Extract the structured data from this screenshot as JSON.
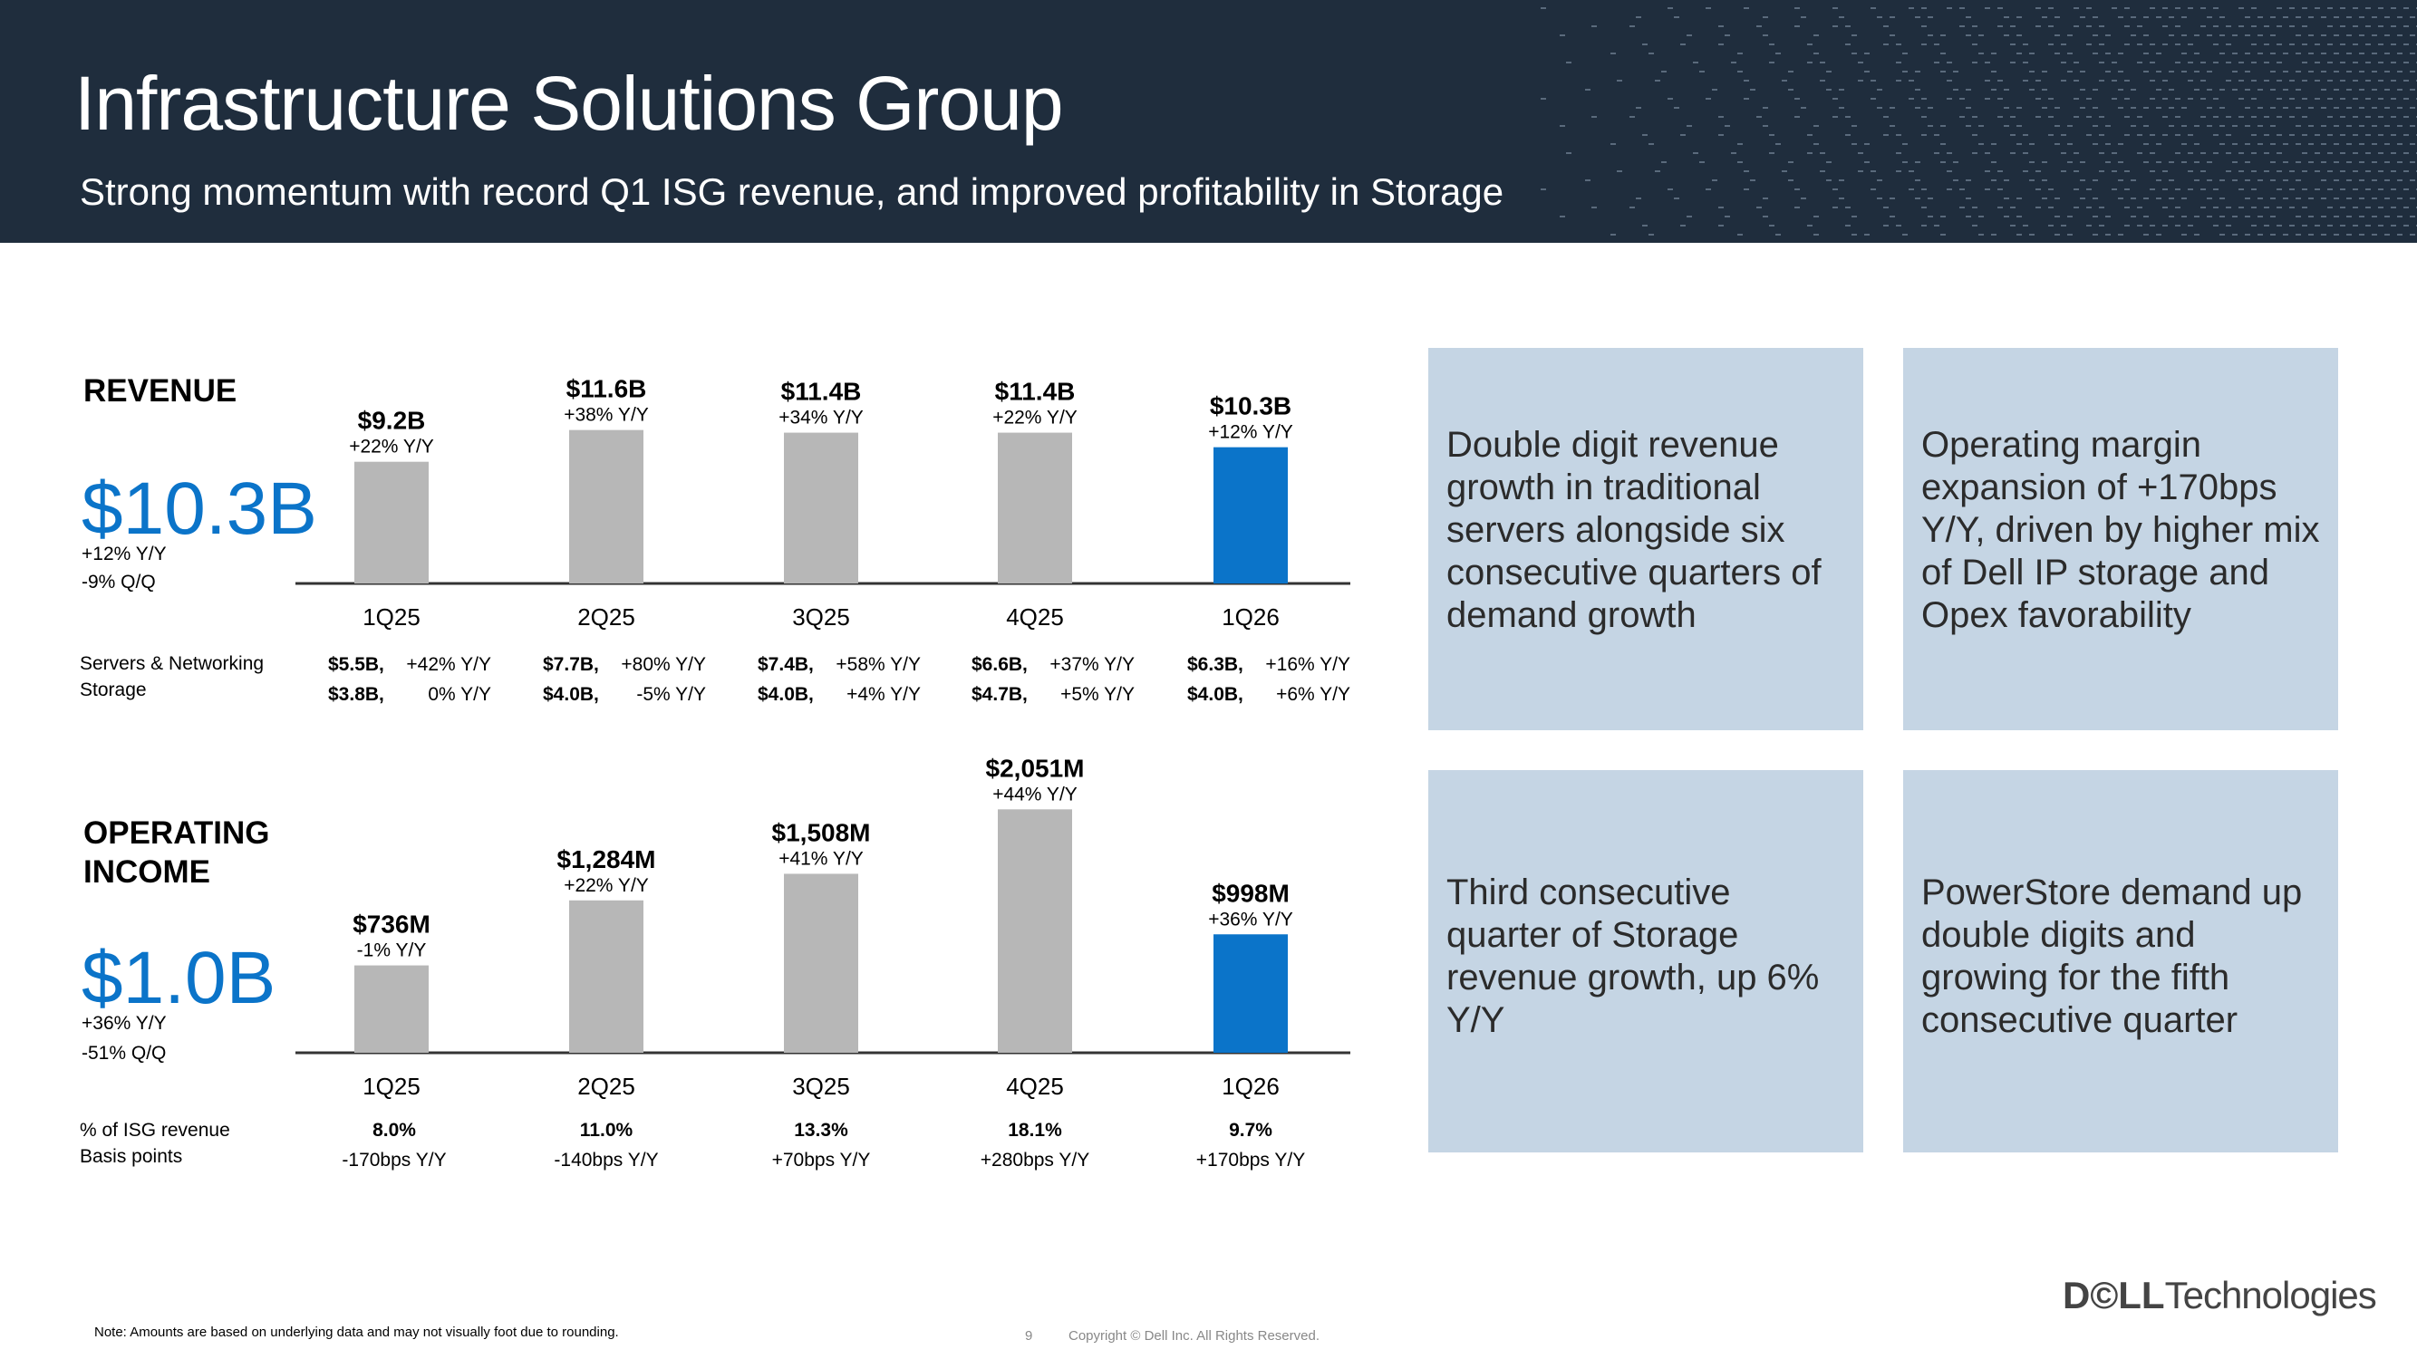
{
  "header": {
    "title": "Infrastructure Solutions Group",
    "subtitle": "Strong momentum with record Q1 ISG revenue, and improved profitability in Storage"
  },
  "colors": {
    "header_bg": "#1f2d3d",
    "bar_gray": "#b7b7b7",
    "bar_highlight": "#0b74c9",
    "accent_text": "#0b74c9",
    "card_bg": "#c5d5e4"
  },
  "revenue": {
    "label": "REVENUE",
    "big_value": "$10.3B",
    "yy": "+12% Y/Y",
    "qq": "-9% Q/Q",
    "row_labels": [
      "Servers & Networking",
      "Storage"
    ]
  },
  "operating_income": {
    "label_line1": "OPERATING",
    "label_line2": "INCOME",
    "big_value": "$1.0B",
    "yy": "+36% Y/Y",
    "qq": "-51% Q/Q",
    "row_labels": [
      "% of ISG revenue",
      "Basis points"
    ]
  },
  "chart_data": [
    {
      "type": "bar",
      "name": "REVENUE",
      "categories": [
        "1Q25",
        "2Q25",
        "3Q25",
        "4Q25",
        "1Q26"
      ],
      "values": [
        9.2,
        11.6,
        11.4,
        11.4,
        10.3
      ],
      "unit": "$B",
      "value_labels": [
        "$9.2B",
        "$11.6B",
        "$11.4B",
        "$11.4B",
        "$10.3B"
      ],
      "growth_labels": [
        "+22% Y/Y",
        "+38% Y/Y",
        "+34% Y/Y",
        "+22% Y/Y",
        "+12% Y/Y"
      ],
      "highlight_index": 4,
      "table_rows": [
        {
          "values": [
            "$5.5B,",
            "$7.7B,",
            "$7.4B,",
            "$6.6B,",
            "$6.3B,"
          ],
          "growth": [
            "+42% Y/Y",
            "+80% Y/Y",
            "+58% Y/Y",
            "+37% Y/Y",
            "+16% Y/Y"
          ]
        },
        {
          "values": [
            "$3.8B,",
            "$4.0B,",
            "$4.0B,",
            "$4.7B,",
            "$4.0B,"
          ],
          "growth": [
            "0% Y/Y",
            "-5% Y/Y",
            "+4% Y/Y",
            "+5% Y/Y",
            "+6% Y/Y"
          ]
        }
      ]
    },
    {
      "type": "bar",
      "name": "OPERATING INCOME",
      "categories": [
        "1Q25",
        "2Q25",
        "3Q25",
        "4Q25",
        "1Q26"
      ],
      "values": [
        736,
        1284,
        1508,
        2051,
        998
      ],
      "unit": "$M",
      "value_labels": [
        "$736M",
        "$1,284M",
        "$1,508M",
        "$2,051M",
        "$998M"
      ],
      "growth_labels": [
        "-1% Y/Y",
        "+22% Y/Y",
        "+41% Y/Y",
        "+44% Y/Y",
        "+36% Y/Y"
      ],
      "highlight_index": 4,
      "table_rows": [
        {
          "values": [
            "8.0%",
            "11.0%",
            "13.3%",
            "18.1%",
            "9.7%"
          ]
        },
        {
          "values": [
            "-170bps Y/Y",
            "-140bps Y/Y",
            "+70bps Y/Y",
            "+280bps Y/Y",
            "+170bps Y/Y"
          ]
        }
      ]
    }
  ],
  "cards": [
    {
      "text": "Double digit revenue growth in traditional servers alongside six consecutive quarters of demand growth"
    },
    {
      "text": "Operating margin expansion of +170bps Y/Y, driven by higher mix of Dell IP storage and Opex favorability"
    },
    {
      "text": "Third consecutive quarter of Storage revenue growth, up 6% Y/Y"
    },
    {
      "text": "PowerStore demand up double digits and growing for the fifth consecutive quarter"
    }
  ],
  "footer": {
    "note": "Note: Amounts are based on underlying data and may not visually foot due to rounding.",
    "page_number": "9",
    "copyright": "Copyright © Dell Inc. All Rights Reserved.",
    "logo_bold": "D©LL",
    "logo_light": "Technologies"
  }
}
